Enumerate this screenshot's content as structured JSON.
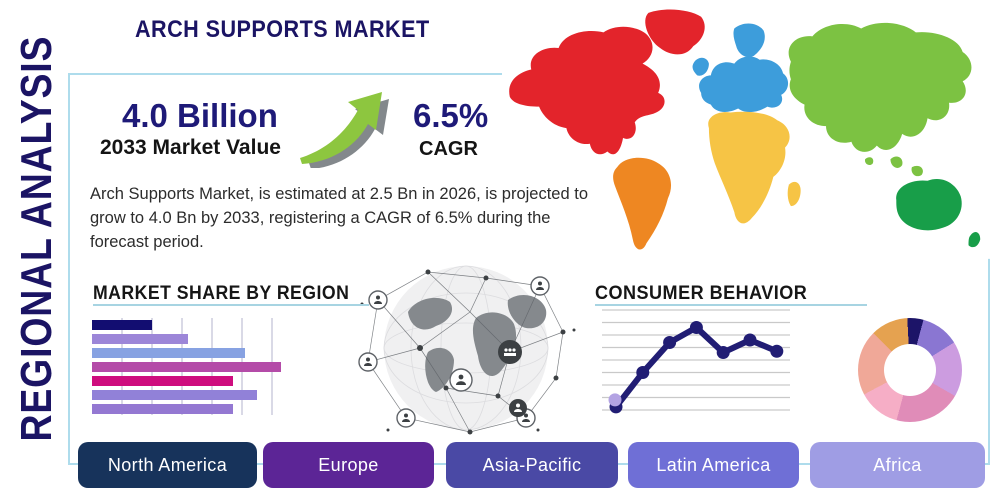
{
  "page": {
    "title": "ARCH SUPPORTS MARKET",
    "sidebar_label": "REGIONAL ANALYSIS"
  },
  "stats": {
    "market_value": "4.0 Billion",
    "market_value_label": "2033 Market Value",
    "cagr_value": "6.5%",
    "cagr_label": "CAGR"
  },
  "description": "Arch Supports Market, is estimated at 2.5 Bn in 2026, is projected to grow to 4.0 Bn by 2033, registering a CAGR of 6.5% during the forecast period.",
  "sections": {
    "market_share_title": "MARKET SHARE BY REGION",
    "consumer_behavior_title": "CONSUMER BEHAVIOR"
  },
  "icons": {
    "growth_arrow": "growth-arrow-icon",
    "growth_arrow_color": "#8dc63f",
    "growth_arrow_shadow": "#6d7378"
  },
  "colors": {
    "navy": "#1b1464",
    "frame_border": "#aedcec",
    "underline": "#a7d4e2",
    "text_dark": "#2c2c2c"
  },
  "map": {
    "colors": {
      "north_america": "#e3242b",
      "greenland": "#e3242b",
      "south_america": "#ee8722",
      "europe": "#3d9ddb",
      "uk": "#3d9ddb",
      "scandinavia": "#3d9ddb",
      "africa": "#f6c445",
      "madagascar": "#f6c445",
      "asia": "#7cc242",
      "islands": "#7cc242",
      "australia": "#189e49",
      "new_zealand": "#189e49"
    }
  },
  "region_buttons": [
    {
      "label": "North America",
      "color": "#17335b"
    },
    {
      "label": "Europe",
      "color": "#5c2596"
    },
    {
      "label": "Asia-Pacific",
      "color": "#4a49a5"
    },
    {
      "label": "Latin America",
      "color": "#6f6fd6"
    },
    {
      "label": "Africa",
      "color": "#9f9de4"
    }
  ],
  "chart_data": [
    {
      "type": "bar",
      "title": "MARKET SHARE BY REGION",
      "orientation": "horizontal",
      "categories": [
        "",
        "",
        "",
        "",
        "",
        "",
        ""
      ],
      "values": [
        2.0,
        3.2,
        5.1,
        6.3,
        4.7,
        5.5,
        4.7
      ],
      "xlim": [
        0,
        9
      ],
      "grid": true,
      "axis_labels_visible": false,
      "bar_colors": [
        "#120d71",
        "#9c86d8",
        "#87a2e2",
        "#b44ba8",
        "#ce0d7e",
        "#9181d8",
        "#9478d2"
      ]
    },
    {
      "type": "line",
      "title": "CONSUMER BEHAVIOR",
      "x": [
        1,
        2,
        3,
        4,
        5,
        6,
        7
      ],
      "values": [
        0.25,
        3.0,
        5.4,
        6.6,
        4.6,
        5.6,
        4.7
      ],
      "ylim": [
        0,
        8
      ],
      "grid": "horizontal",
      "axis_labels_visible": false,
      "line_color": "#211d74",
      "marker_color": "#211d74",
      "start_marker_color": "#b3a3e3"
    },
    {
      "type": "pie",
      "donut": true,
      "start_deg": -3,
      "slices": [
        {
          "color": "#1c1468",
          "deg": 18,
          "pct": 5
        },
        {
          "color": "#8a76d2",
          "deg": 43,
          "pct": 12
        },
        {
          "color": "#cc9ce0",
          "deg": 62,
          "pct": 17
        },
        {
          "color": "#e08cb8",
          "deg": 75,
          "pct": 21
        },
        {
          "color": "#f6aec6",
          "deg": 47,
          "pct": 13
        },
        {
          "color": "#f0a898",
          "deg": 73,
          "pct": 20
        },
        {
          "color": "#e5a250",
          "deg": 42,
          "pct": 12
        }
      ]
    }
  ]
}
